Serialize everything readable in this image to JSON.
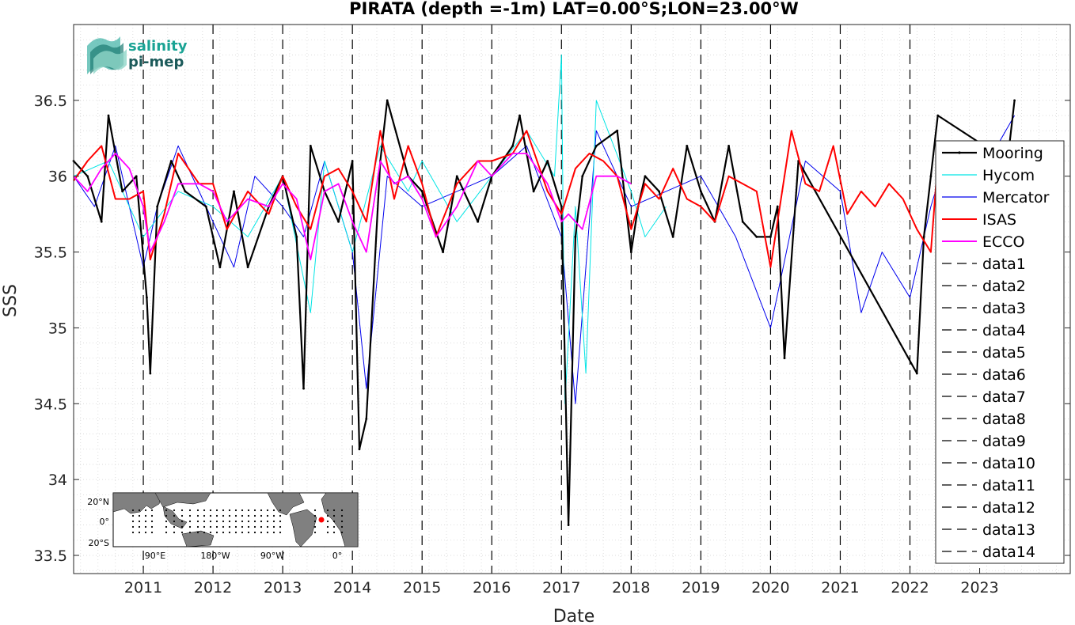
{
  "chart_data": {
    "type": "line",
    "title": "PIRATA (depth =-1m) LAT=0.00°S;LON=23.00°W",
    "xlabel": "Date",
    "ylabel": "SSS",
    "xlim": [
      2010.0,
      2024.3
    ],
    "ylim": [
      33.38,
      37.0
    ],
    "xticks": [
      2011,
      2012,
      2013,
      2014,
      2015,
      2016,
      2017,
      2018,
      2019,
      2020,
      2021,
      2022,
      2023
    ],
    "xtick_labels": [
      "2011",
      "2012",
      "2013",
      "2014",
      "2015",
      "2016",
      "2017",
      "2018",
      "2019",
      "2020",
      "2021",
      "2022",
      "2023"
    ],
    "yticks": [
      33.5,
      34,
      34.5,
      35,
      35.5,
      36,
      36.5
    ],
    "ytick_labels": [
      "33.5",
      "34",
      "34.5",
      "35",
      "35.5",
      "36",
      "36.5"
    ],
    "grid": true,
    "legend_position": "right",
    "vertical_dashed_lines_x": [
      2011,
      2012,
      2013,
      2014,
      2015,
      2016,
      2017,
      2018,
      2019,
      2020,
      2021,
      2022
    ],
    "series": [
      {
        "name": "Mooring",
        "color": "#000000",
        "x": [
          2010.0,
          2010.2,
          2010.4,
          2010.5,
          2010.7,
          2010.9,
          2011.05,
          2011.1,
          2011.2,
          2011.4,
          2011.6,
          2011.9,
          2012.0,
          2012.1,
          2012.3,
          2012.5,
          2012.8,
          2013.0,
          2013.2,
          2013.3,
          2013.4,
          2013.6,
          2013.8,
          2014.0,
          2014.1,
          2014.2,
          2014.4,
          2014.5,
          2014.8,
          2015.0,
          2015.3,
          2015.5,
          2015.8,
          2016.0,
          2016.3,
          2016.4,
          2016.6,
          2016.8,
          2017.0,
          2017.1,
          2017.2,
          2017.3,
          2017.5,
          2017.8,
          2018.0,
          2018.1,
          2018.2,
          2018.4,
          2018.6,
          2018.8,
          2019.0,
          2019.2,
          2019.4,
          2019.6,
          2019.8,
          2020.0,
          2020.1,
          2020.2,
          2020.4,
          2022.1,
          2022.2,
          2022.3,
          2022.4,
          2023.4,
          2023.5
        ],
        "y": [
          36.1,
          36.0,
          35.7,
          36.4,
          35.9,
          36.0,
          35.2,
          34.7,
          35.8,
          36.1,
          35.9,
          35.8,
          35.6,
          35.4,
          35.9,
          35.4,
          35.8,
          36.0,
          35.6,
          34.6,
          36.2,
          35.9,
          35.7,
          36.1,
          34.2,
          34.4,
          36.1,
          36.5,
          36.0,
          35.9,
          35.5,
          36.0,
          35.7,
          36.0,
          36.2,
          36.4,
          35.9,
          36.1,
          35.8,
          33.7,
          35.6,
          36.0,
          36.2,
          36.3,
          35.5,
          35.8,
          36.0,
          35.9,
          35.6,
          36.2,
          35.9,
          35.7,
          36.2,
          35.7,
          35.6,
          35.6,
          35.8,
          34.8,
          36.1,
          34.7,
          35.6,
          36.0,
          36.4,
          36.1,
          36.5
        ]
      },
      {
        "name": "Hycom",
        "color": "#00e5e5",
        "x": [
          2010.0,
          2010.5,
          2011.0,
          2011.5,
          2012.0,
          2012.5,
          2013.0,
          2013.4,
          2013.6,
          2014.0,
          2014.4,
          2014.8,
          2015.0,
          2015.5,
          2016.0,
          2016.5,
          2016.9,
          2017.0,
          2017.05,
          2017.2,
          2017.35,
          2017.5,
          2018.0,
          2018.2,
          2018.5
        ],
        "y": [
          36.0,
          36.1,
          35.6,
          35.9,
          35.8,
          35.6,
          36.0,
          35.1,
          36.1,
          35.5,
          36.2,
          35.9,
          36.1,
          35.7,
          36.0,
          36.3,
          36.0,
          36.8,
          34.5,
          35.8,
          34.7,
          36.5,
          35.9,
          35.6,
          35.8
        ]
      },
      {
        "name": "Mercator",
        "color": "#0000ee",
        "x": [
          2010.0,
          2010.3,
          2010.6,
          2011.0,
          2011.2,
          2011.5,
          2012.0,
          2012.3,
          2012.6,
          2013.0,
          2013.3,
          2013.6,
          2014.0,
          2014.2,
          2014.5,
          2015.0,
          2015.5,
          2016.0,
          2016.5,
          2017.0,
          2017.2,
          2017.5,
          2018.0,
          2018.5,
          2019.0,
          2019.5,
          2020.0,
          2020.5,
          2021.0,
          2021.3,
          2021.6,
          2022.0,
          2022.3,
          2022.5,
          2023.0,
          2023.5
        ],
        "y": [
          36.0,
          35.8,
          36.2,
          35.4,
          35.8,
          36.2,
          35.7,
          35.4,
          36.0,
          35.8,
          35.6,
          36.1,
          35.5,
          34.6,
          36.0,
          35.8,
          35.9,
          36.0,
          36.2,
          35.6,
          34.5,
          36.3,
          35.8,
          35.9,
          36.0,
          35.6,
          35.0,
          36.1,
          35.9,
          35.1,
          35.5,
          35.2,
          35.8,
          36.1,
          36.0,
          36.4
        ]
      },
      {
        "name": "ISAS",
        "color": "#ff0000",
        "x": [
          2010.0,
          2010.2,
          2010.4,
          2010.6,
          2010.8,
          2011.0,
          2011.1,
          2011.3,
          2011.5,
          2011.8,
          2012.0,
          2012.2,
          2012.5,
          2012.8,
          2013.0,
          2013.2,
          2013.4,
          2013.6,
          2013.8,
          2014.0,
          2014.2,
          2014.4,
          2014.6,
          2014.8,
          2015.0,
          2015.2,
          2015.5,
          2015.8,
          2016.0,
          2016.3,
          2016.5,
          2016.8,
          2017.0,
          2017.2,
          2017.4,
          2017.6,
          2017.8,
          2018.0,
          2018.2,
          2018.4,
          2018.6,
          2018.8,
          2019.0,
          2019.2,
          2019.4,
          2019.6,
          2019.8,
          2020.0,
          2020.1,
          2020.3,
          2020.5,
          2020.7,
          2020.9,
          2021.1,
          2021.3,
          2021.5,
          2021.7,
          2021.9,
          2022.1,
          2022.3,
          2022.4
        ],
        "y": [
          35.97,
          36.1,
          36.2,
          35.85,
          35.85,
          35.9,
          35.45,
          35.75,
          36.15,
          35.95,
          35.95,
          35.65,
          35.9,
          35.75,
          36.0,
          35.8,
          35.65,
          36.0,
          36.05,
          35.9,
          35.7,
          36.3,
          35.85,
          36.2,
          35.95,
          35.6,
          35.95,
          36.1,
          36.1,
          36.15,
          36.3,
          35.9,
          35.75,
          36.05,
          36.15,
          36.1,
          36.0,
          35.65,
          35.95,
          35.85,
          36.05,
          35.85,
          35.8,
          35.7,
          36.0,
          35.95,
          35.9,
          35.4,
          35.7,
          36.3,
          35.95,
          35.9,
          36.2,
          35.75,
          35.9,
          35.8,
          35.95,
          35.85,
          35.65,
          35.5,
          36.1
        ]
      },
      {
        "name": "ECCO",
        "color": "#ff00ff",
        "x": [
          2010.0,
          2010.2,
          2010.4,
          2010.6,
          2010.8,
          2011.0,
          2011.1,
          2011.3,
          2011.5,
          2011.8,
          2012.0,
          2012.2,
          2012.5,
          2012.8,
          2013.0,
          2013.2,
          2013.4,
          2013.6,
          2013.8,
          2014.0,
          2014.2,
          2014.4,
          2014.6,
          2014.8,
          2015.0,
          2015.2,
          2015.5,
          2015.8,
          2016.0,
          2016.3,
          2016.5,
          2016.8,
          2017.0,
          2017.1,
          2017.3,
          2017.5,
          2017.8,
          2018.0
        ],
        "y": [
          36.0,
          35.9,
          36.05,
          36.15,
          36.05,
          35.8,
          35.5,
          35.7,
          35.95,
          35.95,
          35.9,
          35.7,
          35.85,
          35.8,
          35.95,
          35.85,
          35.45,
          35.9,
          35.95,
          35.7,
          35.5,
          36.1,
          35.95,
          36.0,
          35.85,
          35.6,
          35.8,
          36.1,
          36.0,
          36.15,
          36.15,
          35.95,
          35.7,
          35.75,
          35.65,
          36.0,
          36.0,
          35.95
        ]
      }
    ],
    "legend_entries": [
      "Mooring",
      "Hycom",
      "Mercator",
      "ISAS",
      "ECCO",
      "data1",
      "data2",
      "data3",
      "data4",
      "data5",
      "data6",
      "data7",
      "data8",
      "data9",
      "data10",
      "data11",
      "data12",
      "data13",
      "data14"
    ]
  },
  "logo": {
    "line1": "salinity",
    "line2": "pi-mep"
  },
  "inset_map": {
    "ytick_labels": [
      "20°N",
      "0°",
      "20°S"
    ],
    "xtick_labels": [
      "90°E",
      "180°W",
      "90°W",
      "0°"
    ]
  }
}
